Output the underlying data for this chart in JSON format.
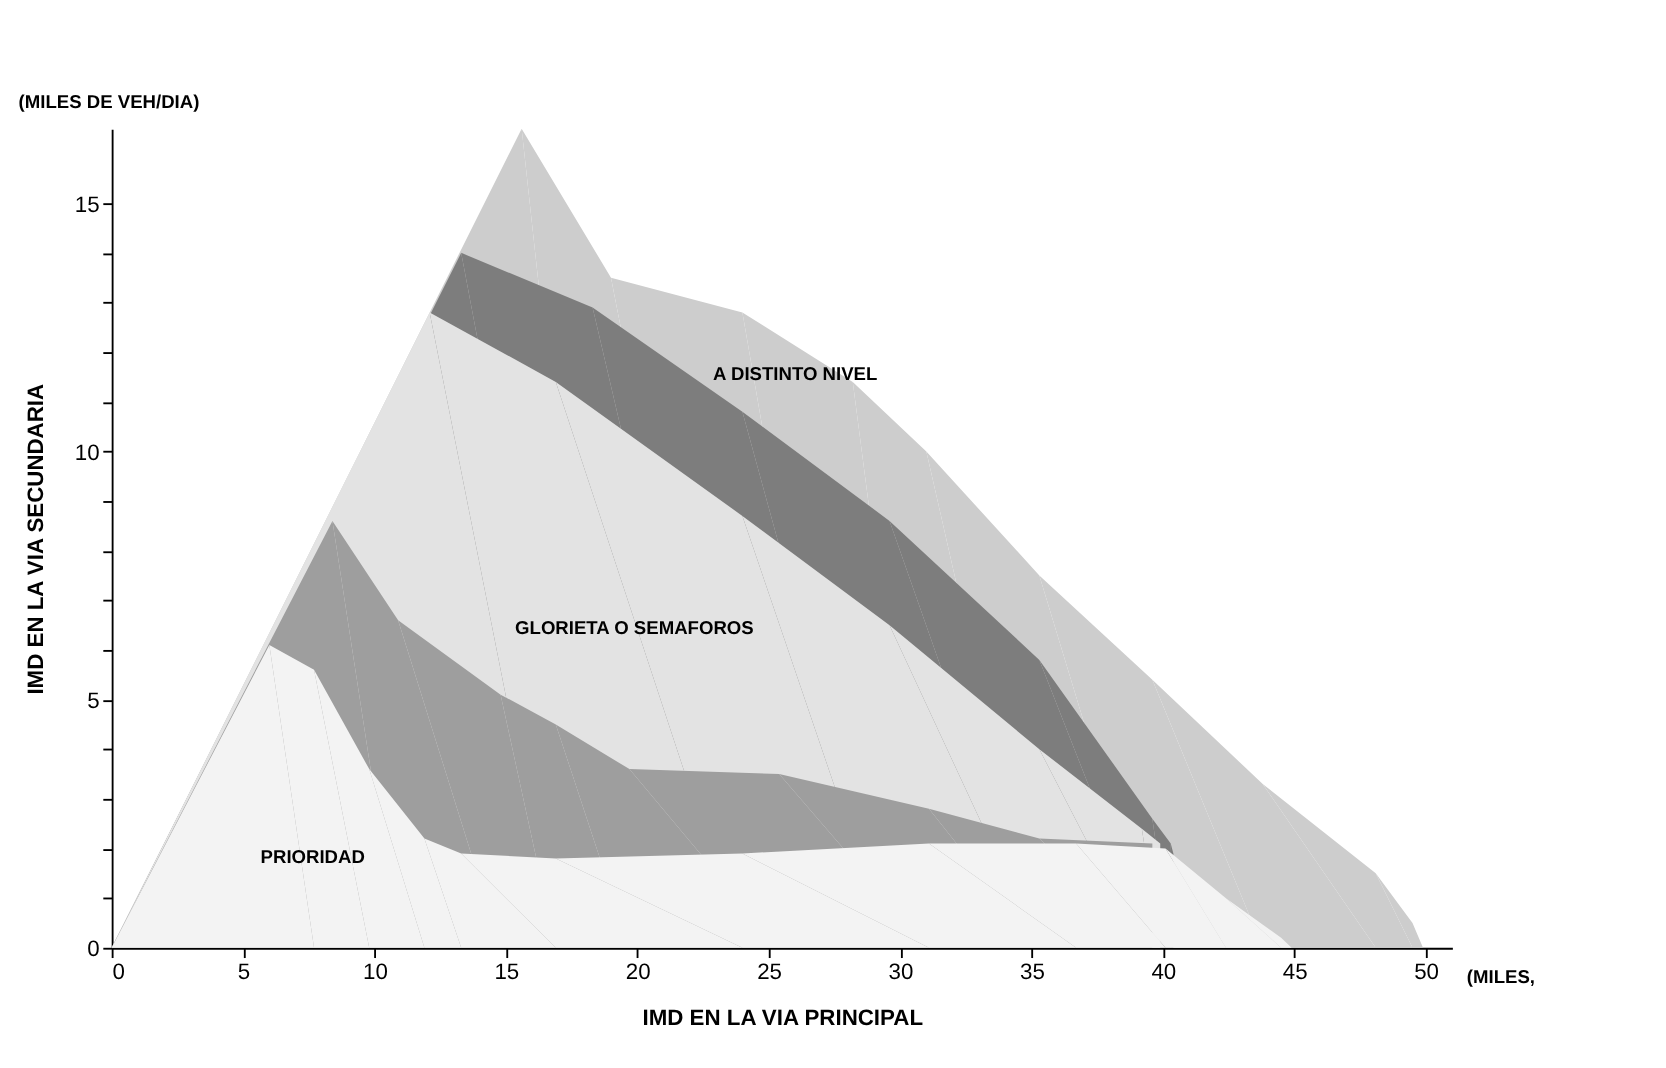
{
  "chart_data": {
    "type": "area",
    "xlabel": "IMD EN LA VIA PRINCIPAL",
    "ylabel": "IMD EN LA VIA SECUNDARIA",
    "xlim": [
      0,
      51
    ],
    "ylim": [
      0,
      16.5
    ],
    "xticks": [
      0,
      5,
      10,
      15,
      20,
      25,
      30,
      35,
      40,
      45,
      50
    ],
    "yticks": [
      0,
      {
        "value": 1,
        "label": null
      },
      {
        "value": 2,
        "label": null
      },
      {
        "value": 3,
        "label": null
      },
      {
        "value": 4,
        "label": null
      },
      5,
      {
        "value": 6,
        "label": null
      },
      {
        "value": 7,
        "label": null
      },
      {
        "value": 8,
        "label": null
      },
      {
        "value": 9,
        "label": null
      },
      10,
      {
        "value": 11,
        "label": null
      },
      {
        "value": 12,
        "label": null
      },
      {
        "value": 13,
        "label": null
      },
      {
        "value": 14,
        "label": null
      },
      15
    ],
    "grid": false,
    "series": [
      {
        "name": "A DISTINTO NIVEL",
        "color": "#cdcdcd",
        "x": [
          0,
          15.6,
          19,
          24,
          28.2,
          31,
          35.3,
          39.6,
          43.8,
          48.1,
          49.5,
          49.9
        ],
        "values": [
          0,
          16.5,
          13.5,
          12.8,
          11.4,
          10,
          7.5,
          5.4,
          3.3,
          1.5,
          0.5,
          0
        ]
      },
      {
        "color": "#7d7d7d",
        "x": [
          0,
          13.3,
          18.3,
          24,
          29.6,
          35.3,
          39.6,
          40.3,
          40.4
        ],
        "values": [
          0,
          14,
          12.9,
          10.8,
          8.6,
          5.8,
          2.6,
          2.1,
          1.9
        ]
      },
      {
        "name": "GLORIETA O SEMAFOROS",
        "color": "#e3e3e3",
        "x": [
          0,
          12.1,
          16.9,
          24,
          29.6,
          35.3,
          39.2,
          39.9
        ],
        "values": [
          0,
          12.8,
          11.4,
          8.7,
          6.5,
          4,
          2.4,
          2.1
        ]
      },
      {
        "color": "#9e9e9e",
        "x": [
          0,
          8.4,
          10.9,
          14.8,
          16.9,
          19.7,
          25.4,
          31.1,
          35.3,
          39.6
        ],
        "values": [
          0,
          8.6,
          6.6,
          5.1,
          4.5,
          3.6,
          3.5,
          2.8,
          2.2,
          2.1
        ]
      },
      {
        "name": "PRIORIDAD",
        "color": "#f3f3f3",
        "x": [
          0,
          6,
          7.7,
          9.8,
          11.9,
          13.3,
          16.9,
          24,
          31.1,
          36.7,
          40.1,
          42.4,
          44.5,
          44.9
        ],
        "values": [
          0,
          6.1,
          5.6,
          3.6,
          2.2,
          1.9,
          1.8,
          1.9,
          2.1,
          2.1,
          2,
          1,
          0.2,
          0
        ]
      }
    ],
    "annotations": [
      "(MILES DE VEH/DIA)",
      "(MILES,"
    ]
  }
}
